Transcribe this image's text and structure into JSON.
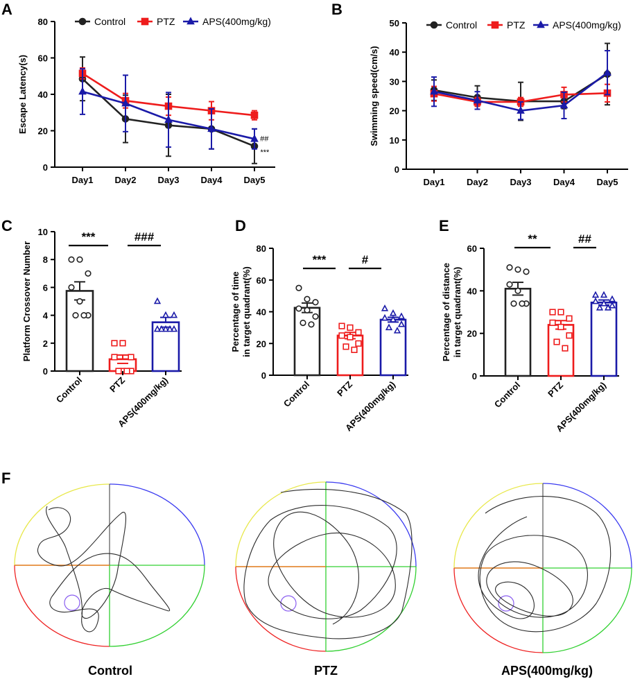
{
  "panels": {
    "A": "A",
    "B": "B",
    "C": "C",
    "D": "D",
    "E": "E",
    "F": "F"
  },
  "colors": {
    "Control": "#222222",
    "PTZ": "#ee1c1c",
    "APS(400mg/kg)": "#1a1aa8"
  },
  "chart_data": [
    {
      "panel": "A",
      "type": "line",
      "categories": [
        "Day1",
        "Day2",
        "Day3",
        "Day4",
        "Day5"
      ],
      "ylabel": "Escape Latency(s)",
      "ylim": [
        0,
        80
      ],
      "yticks": [
        "0",
        "20",
        "40",
        "60",
        "80"
      ],
      "legend": [
        "Control",
        "PTZ",
        "APS(400mg/kg)"
      ],
      "series": [
        {
          "name": "Control",
          "values": [
            48.5,
            26.5,
            23,
            21,
            11.5
          ],
          "errors": [
            12,
            13,
            17,
            11,
            9.5
          ]
        },
        {
          "name": "PTZ",
          "values": [
            51.5,
            36.5,
            33.5,
            31,
            28.5
          ],
          "errors": [
            3,
            4,
            5,
            5,
            2.5
          ]
        },
        {
          "name": "APS(400mg/kg)",
          "values": [
            41.5,
            35,
            26,
            21,
            15.5
          ],
          "errors": [
            12.5,
            15.5,
            15,
            11,
            5.5
          ]
        }
      ],
      "annotations": {
        "hash": "##",
        "stars": "***"
      }
    },
    {
      "panel": "B",
      "type": "line",
      "categories": [
        "Day1",
        "Day2",
        "Day3",
        "Day4",
        "Day5"
      ],
      "ylabel": "Swimming speed(cm/s)",
      "ylim": [
        0,
        50
      ],
      "yticks": [
        "0",
        "10",
        "20",
        "30",
        "40",
        "50"
      ],
      "legend": [
        "Control",
        "PTZ",
        "APS(400mg/kg)"
      ],
      "series": [
        {
          "name": "Control",
          "values": [
            27,
            24.5,
            23.2,
            23.2,
            32.5
          ],
          "errors": [
            3.5,
            4,
            6.5,
            2.5,
            10.5
          ]
        },
        {
          "name": "PTZ",
          "values": [
            25.8,
            23,
            23,
            25.5,
            26
          ],
          "errors": [
            2.5,
            1.5,
            1.5,
            2.5,
            3
          ]
        },
        {
          "name": "APS(400mg/kg)",
          "values": [
            26.5,
            23.5,
            20,
            21.8,
            33
          ],
          "errors": [
            5,
            3,
            3,
            4.5,
            7.5
          ]
        }
      ]
    },
    {
      "panel": "C",
      "type": "bar",
      "categories": [
        "Control",
        "PTZ",
        "APS(400mg/kg)"
      ],
      "ylabel": "Platform Crossover Number",
      "ylim": [
        0,
        10
      ],
      "yticks": [
        "0",
        "2",
        "4",
        "6",
        "8",
        "10"
      ],
      "values": [
        5.75,
        0.85,
        3.5
      ],
      "sem": [
        0.65,
        0.3,
        0.35
      ],
      "points": [
        [
          8,
          8,
          7,
          6,
          5,
          4,
          4,
          4
        ],
        [
          2,
          2,
          1,
          1,
          0,
          0,
          0,
          0
        ],
        [
          5,
          4,
          4,
          3,
          3,
          3,
          3,
          3
        ]
      ],
      "significance": [
        "***",
        "###"
      ]
    },
    {
      "panel": "D",
      "type": "bar",
      "categories": [
        "Control",
        "PTZ",
        "APS(400mg/kg)"
      ],
      "ylabel_lines": [
        "Percentage of time",
        "in target quadrant(%)"
      ],
      "ylim": [
        0,
        80
      ],
      "yticks": [
        "0",
        "20",
        "40",
        "60",
        "80"
      ],
      "values": [
        42.5,
        25,
        35
      ],
      "sem": [
        3,
        2,
        1.5
      ],
      "points": [
        [
          55,
          48,
          46,
          42,
          41,
          37,
          33,
          32
        ],
        [
          31,
          30,
          27,
          25,
          24,
          20,
          18,
          16
        ],
        [
          42,
          39,
          37,
          36,
          35,
          32,
          30,
          28
        ]
      ],
      "significance": [
        "***",
        "#"
      ]
    },
    {
      "panel": "E",
      "type": "bar",
      "categories": [
        "Control",
        "PTZ",
        "APS(400mg/kg)"
      ],
      "ylabel_lines": [
        "Percentage of distance",
        "in target quadrant(%)"
      ],
      "ylim": [
        0,
        60
      ],
      "yticks": [
        "0",
        "20",
        "40",
        "60"
      ],
      "values": [
        41,
        24,
        34.5
      ],
      "sem": [
        3,
        2,
        1.2
      ],
      "points": [
        [
          51,
          50,
          49,
          43,
          40,
          34,
          34,
          34
        ],
        [
          30,
          30,
          27,
          25,
          23,
          19,
          16,
          13
        ],
        [
          38,
          38,
          36,
          35,
          34,
          33,
          32,
          32
        ]
      ],
      "significance": [
        "**",
        "##"
      ]
    }
  ],
  "maze": {
    "labels": [
      "Control",
      "PTZ",
      "APS(400mg/kg)"
    ]
  }
}
